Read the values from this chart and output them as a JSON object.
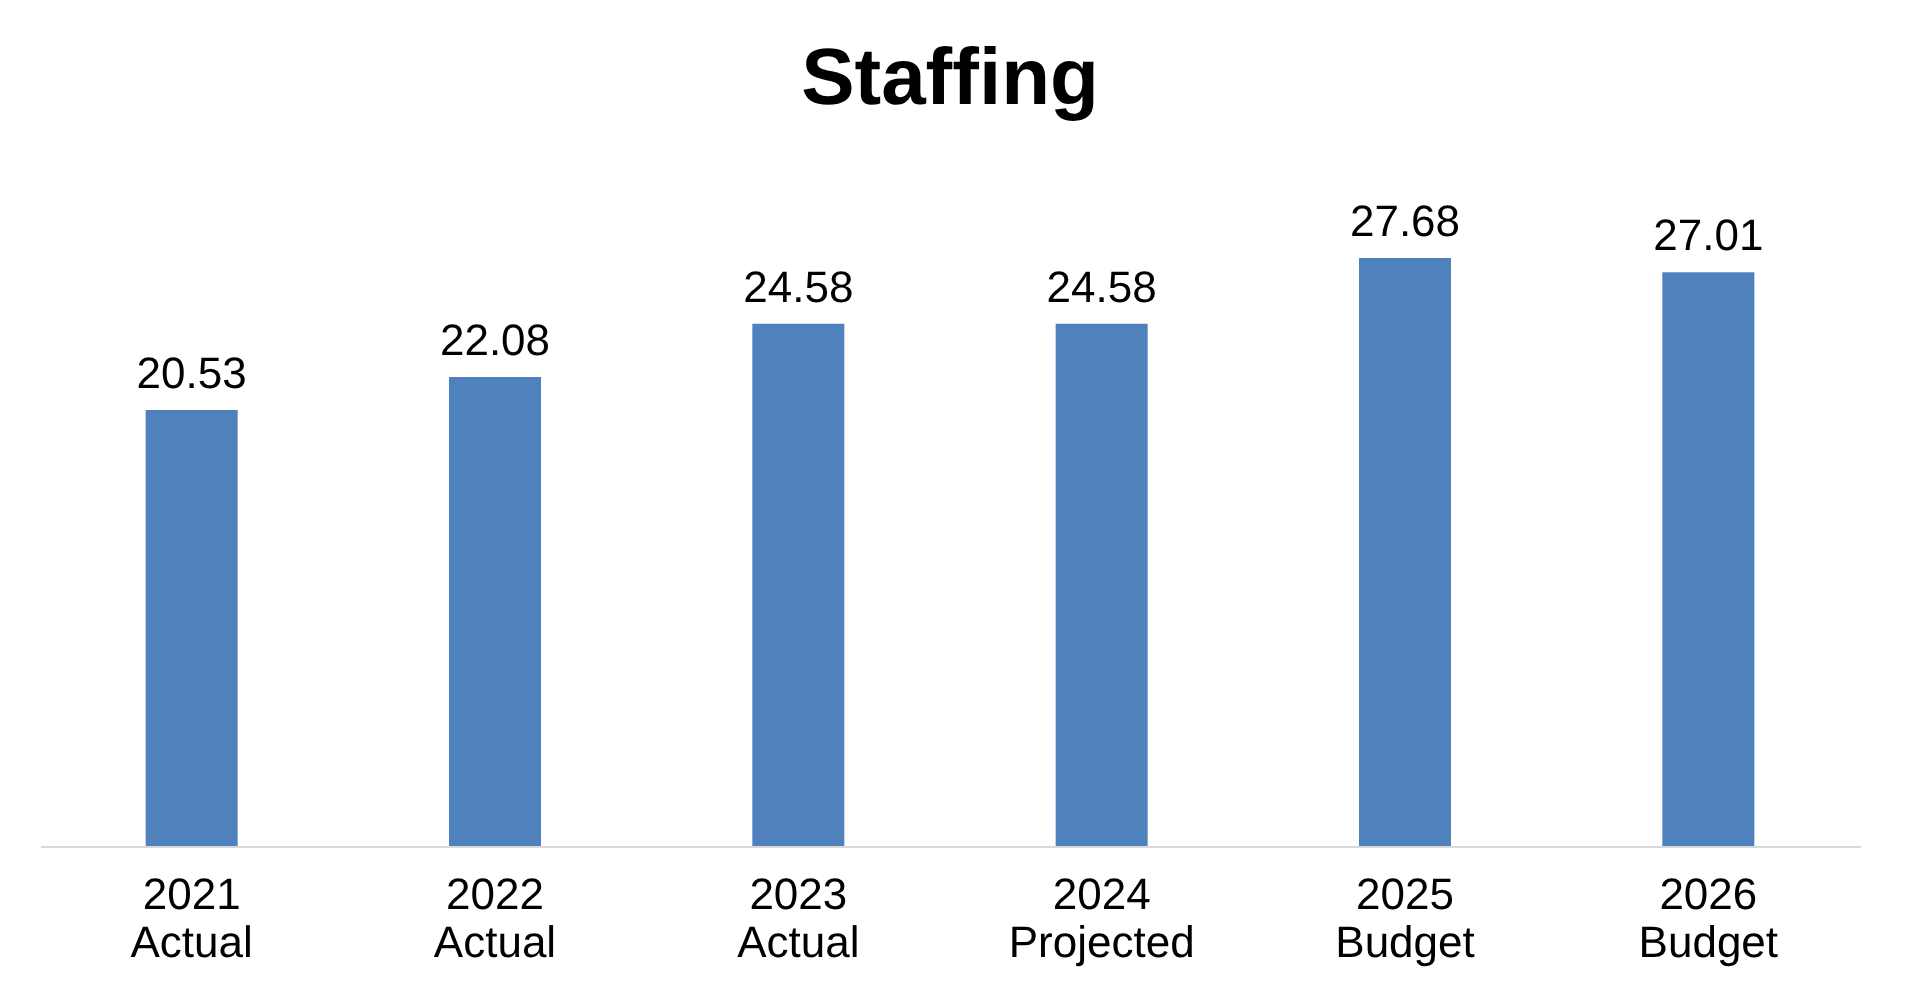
{
  "chart_data": {
    "type": "bar",
    "title": "Staffing",
    "categories": [
      "2021\nActual",
      "2022\nActual",
      "2023\nActual",
      "2024\nProjected",
      "2025\nBudget",
      "2026\nBudget"
    ],
    "values": [
      20.53,
      22.08,
      24.58,
      24.58,
      27.68,
      27.01
    ],
    "color": "#4f81bd",
    "data_labels": true,
    "tick_labels": "x"
  }
}
